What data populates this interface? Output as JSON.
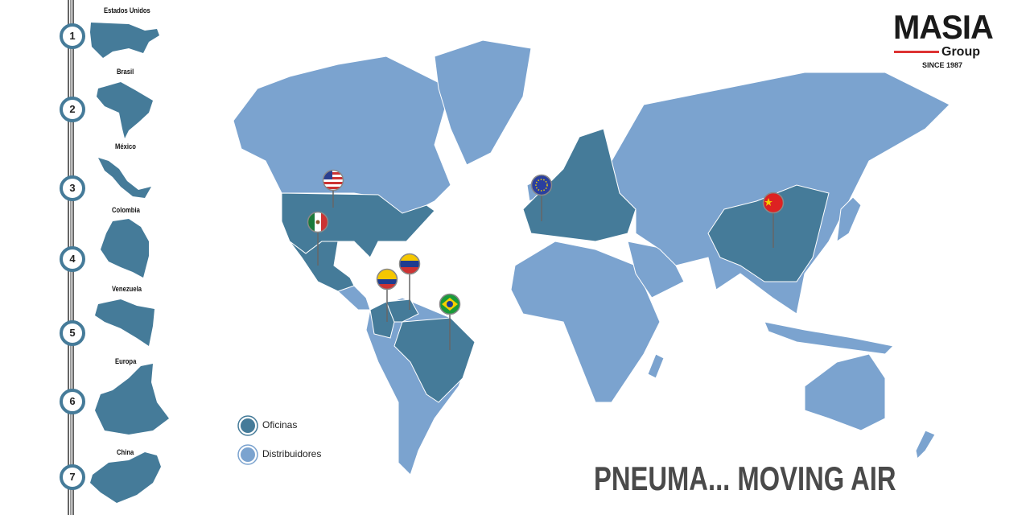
{
  "colors": {
    "office": "#457b99",
    "distributor": "#7ba3cf",
    "rail": "#666666",
    "logo_red": "#dd3333",
    "tagline": "#4a4a4a"
  },
  "logo": {
    "name": "MASIA",
    "sub": "Group",
    "since": "SINCE 1987"
  },
  "offices_list": [
    {
      "number": "1",
      "label": "Estados Unidos"
    },
    {
      "number": "2",
      "label": "Brasil"
    },
    {
      "number": "3",
      "label": "México"
    },
    {
      "number": "4",
      "label": "Colombia"
    },
    {
      "number": "5",
      "label": "Venezuela"
    },
    {
      "number": "6",
      "label": "Europa"
    },
    {
      "number": "7",
      "label": "China"
    }
  ],
  "legend": {
    "offices": "Oficinas",
    "distributors": "Distribuidores"
  },
  "pins": [
    "usa-flag-icon",
    "mexico-flag-icon",
    "colombia-flag-icon",
    "venezuela-flag-icon",
    "brazil-flag-icon",
    "eu-flag-icon",
    "china-flag-icon"
  ],
  "tagline": "PNEUMA... MOVING AIR"
}
